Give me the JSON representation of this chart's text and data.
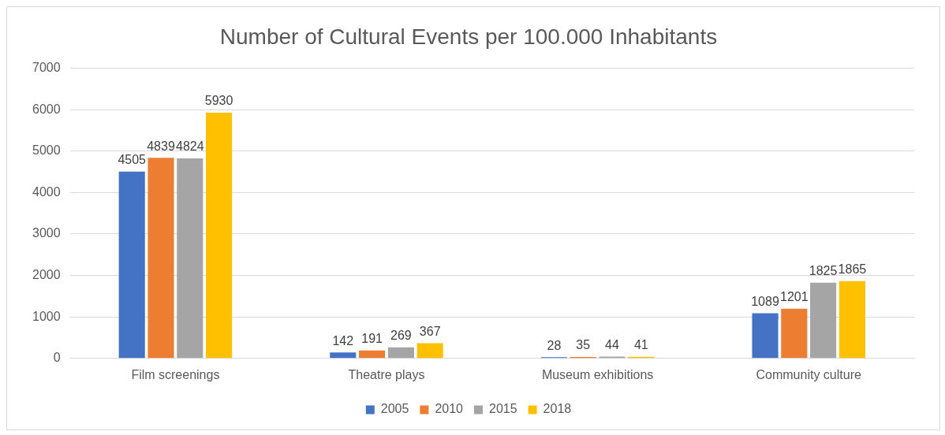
{
  "chart_data": {
    "type": "bar",
    "title": "Number of Cultural Events per 100.000 Inhabitants",
    "categories": [
      "Film screenings",
      "Theatre plays",
      "Museum exhibitions",
      "Community culture"
    ],
    "series": [
      {
        "name": "2005",
        "color": "#4472c4",
        "values": [
          4505,
          142,
          28,
          1089
        ]
      },
      {
        "name": "2010",
        "color": "#ed7d31",
        "values": [
          4839,
          191,
          35,
          1201
        ]
      },
      {
        "name": "2015",
        "color": "#a5a5a5",
        "values": [
          4824,
          269,
          44,
          1825
        ]
      },
      {
        "name": "2018",
        "color": "#ffc000",
        "values": [
          5930,
          367,
          41,
          1865
        ]
      }
    ],
    "ylim": [
      0,
      7000
    ],
    "yticks": [
      0,
      1000,
      2000,
      3000,
      4000,
      5000,
      6000,
      7000
    ],
    "grid": "y",
    "legend": "bottom",
    "data_labels": true
  }
}
